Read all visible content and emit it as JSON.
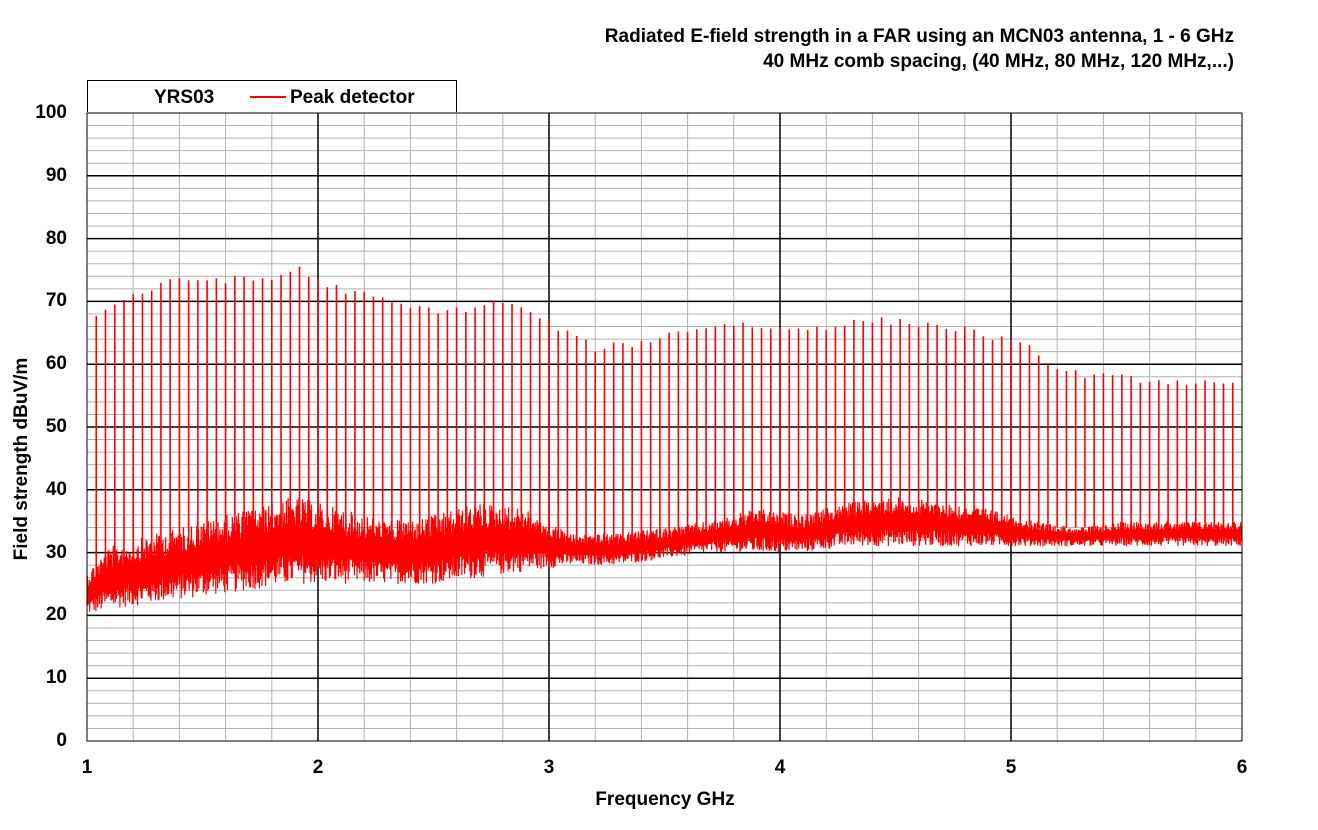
{
  "chart_data": {
    "type": "line",
    "title": "Radiated  E-field strength  in a FAR using  an MCN03  antenna,  1 - 6 GHz",
    "subtitle": "40  MHz  comb  spacing,  (40  MHz,  80  MHz,  120  MHz,...)",
    "xlabel": "Frequency  GHz",
    "ylabel": "Field  strength  dBuV/m",
    "xlim": [
      1,
      6
    ],
    "ylim": [
      0,
      100
    ],
    "x_ticks": [
      "1",
      "2",
      "3",
      "4",
      "5",
      "6"
    ],
    "y_ticks": [
      "0",
      "10",
      "20",
      "30",
      "40",
      "50",
      "60",
      "70",
      "80",
      "90",
      "100"
    ],
    "grid": true,
    "legend": {
      "title": "YRS03",
      "placement": "top-left"
    },
    "comb_spacing_ghz": 0.04,
    "series": [
      {
        "name": "Peak detector",
        "color": "#ff0000",
        "comb_peak_envelope": {
          "x": [
            1.04,
            1.2,
            1.4,
            1.6,
            1.8,
            1.92,
            2.0,
            2.2,
            2.4,
            2.6,
            2.8,
            2.96,
            3.2,
            3.4,
            3.6,
            3.8,
            4.0,
            4.2,
            4.4,
            4.6,
            4.8,
            5.0,
            5.12,
            5.2,
            5.4,
            5.6,
            5.8,
            5.96
          ],
          "y": [
            68,
            71,
            73.5,
            73.5,
            73.5,
            75.5,
            73,
            71,
            69,
            68.5,
            70,
            67.5,
            62.5,
            63.5,
            65.5,
            66.5,
            65.5,
            66,
            67,
            66.5,
            65.5,
            63.5,
            62,
            59,
            58,
            57.5,
            57,
            56.5
          ]
        },
        "noise_floor_band": {
          "x": [
            1.0,
            1.1,
            1.3,
            1.5,
            1.7,
            1.9,
            2.1,
            2.3,
            2.5,
            2.7,
            2.9,
            3.1,
            3.3,
            3.5,
            3.7,
            3.9,
            4.1,
            4.3,
            4.5,
            4.7,
            4.9,
            5.1,
            5.3,
            5.5,
            5.7,
            6.0
          ],
          "min": [
            20,
            21,
            22,
            23,
            24,
            25,
            25,
            25,
            25,
            26,
            27,
            28,
            28,
            29,
            30,
            30,
            30,
            31,
            31,
            31,
            31,
            31,
            31,
            31,
            31,
            31
          ],
          "max": [
            27,
            31,
            33,
            35,
            37,
            39,
            37,
            35,
            36,
            38,
            37,
            33,
            33,
            34,
            35,
            37,
            36,
            38,
            39,
            38,
            37,
            35,
            34,
            35,
            35,
            35
          ]
        }
      }
    ]
  }
}
